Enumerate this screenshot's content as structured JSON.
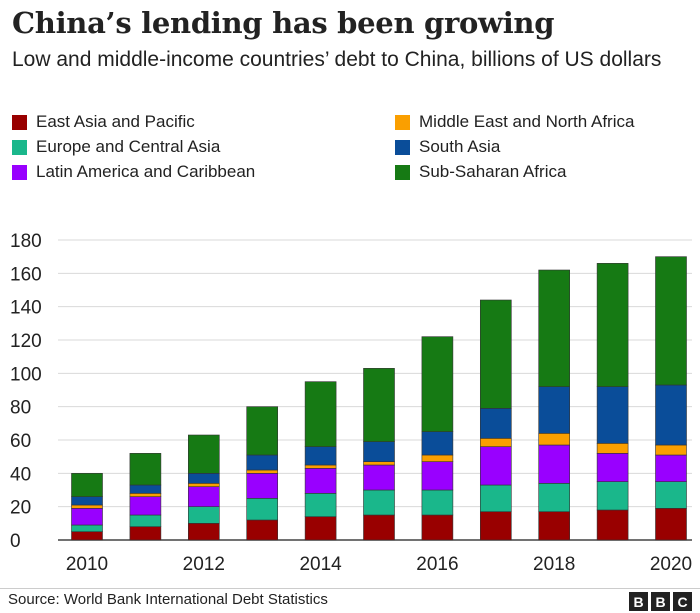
{
  "title": "China’s lending has been growing",
  "subtitle": "Low and middle-income countries’ debt to China, billions of US dollars",
  "source": "Source: World Bank International Debt Statistics",
  "logo": [
    "B",
    "B",
    "C"
  ],
  "chart_data": {
    "type": "bar",
    "stacked": true,
    "categories": [
      "2010",
      "2011",
      "2012",
      "2013",
      "2014",
      "2015",
      "2016",
      "2017",
      "2018",
      "2019",
      "2020"
    ],
    "x_tick_labels": [
      "2010",
      "2012",
      "2014",
      "2016",
      "2018",
      "2020"
    ],
    "ylim": [
      0,
      180
    ],
    "yticks": [
      0,
      20,
      40,
      60,
      80,
      100,
      120,
      140,
      160,
      180
    ],
    "grid": true,
    "legend_position": "top",
    "series": [
      {
        "name": "East Asia and Pacific",
        "color": "#990000",
        "values": [
          5,
          8,
          10,
          12,
          14,
          15,
          15,
          17,
          17,
          18,
          19
        ]
      },
      {
        "name": "Europe and Central Asia",
        "color": "#1ab78b",
        "values": [
          4,
          7,
          10,
          13,
          14,
          15,
          15,
          16,
          17,
          17,
          16
        ]
      },
      {
        "name": "Latin America and Caribbean",
        "color": "#9900ff",
        "values": [
          10,
          11,
          12,
          15,
          15,
          15,
          17,
          23,
          23,
          17,
          16
        ]
      },
      {
        "name": "Middle East and North Africa",
        "color": "#fa9f00",
        "values": [
          2,
          2,
          2,
          2,
          2,
          2,
          4,
          5,
          7,
          6,
          6
        ]
      },
      {
        "name": "South Asia",
        "color": "#0a4d99",
        "values": [
          5,
          5,
          6,
          9,
          11,
          12,
          14,
          18,
          28,
          34,
          36
        ]
      },
      {
        "name": "Sub-Saharan Africa",
        "color": "#167a14",
        "values": [
          14,
          19,
          23,
          29,
          39,
          44,
          57,
          65,
          70,
          74,
          77
        ]
      }
    ]
  }
}
